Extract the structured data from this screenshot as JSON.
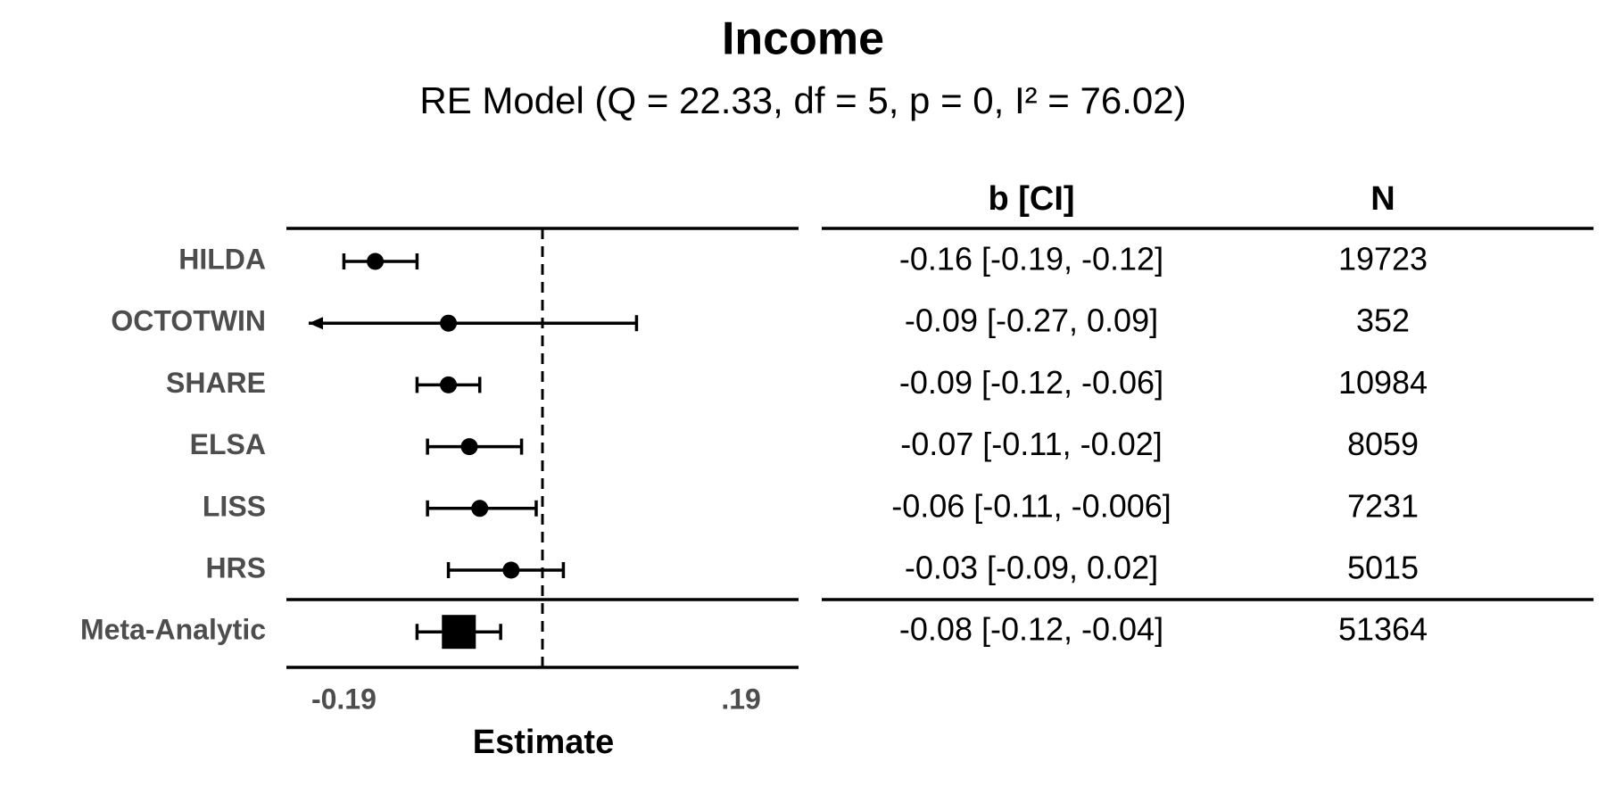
{
  "chart_data": {
    "type": "forest",
    "title": "Income",
    "subtitle": "RE Model (Q = 22.33, df = 5, p = 0, I² = 76.02)",
    "x_label": "Estimate",
    "table_headers": [
      "b [CI]",
      "N"
    ],
    "categories": [
      "HILDA",
      "OCTOTWIN",
      "SHARE",
      "ELSA",
      "LISS",
      "HRS"
    ],
    "values": [
      -0.16,
      -0.09,
      -0.09,
      -0.07,
      -0.06,
      -0.03
    ],
    "lower": [
      -0.19,
      -0.27,
      -0.12,
      -0.11,
      -0.11,
      -0.09
    ],
    "upper": [
      -0.12,
      0.09,
      -0.06,
      -0.02,
      -0.006,
      0.02
    ],
    "value_labels": [
      "-0.16 [-0.19, -0.12]",
      "-0.09 [-0.27, 0.09]",
      "-0.09 [-0.12, -0.06]",
      "-0.07 [-0.11, -0.02]",
      "-0.06 [-0.11, -0.006]",
      "-0.03 [-0.09, 0.02]"
    ],
    "n": [
      19723,
      352,
      10984,
      8059,
      7231,
      5015
    ],
    "summary": {
      "name": "Meta-Analytic",
      "value": -0.08,
      "lower": -0.12,
      "upper": -0.04,
      "label": "-0.08 [-0.12, -0.04]",
      "n": 51364
    },
    "reference_line": 0,
    "xlim": [
      -0.245,
      0.245
    ],
    "xticks": [
      -0.19,
      {
        "value": 0.19,
        "label": ".19"
      }
    ],
    "color": "#000000"
  }
}
